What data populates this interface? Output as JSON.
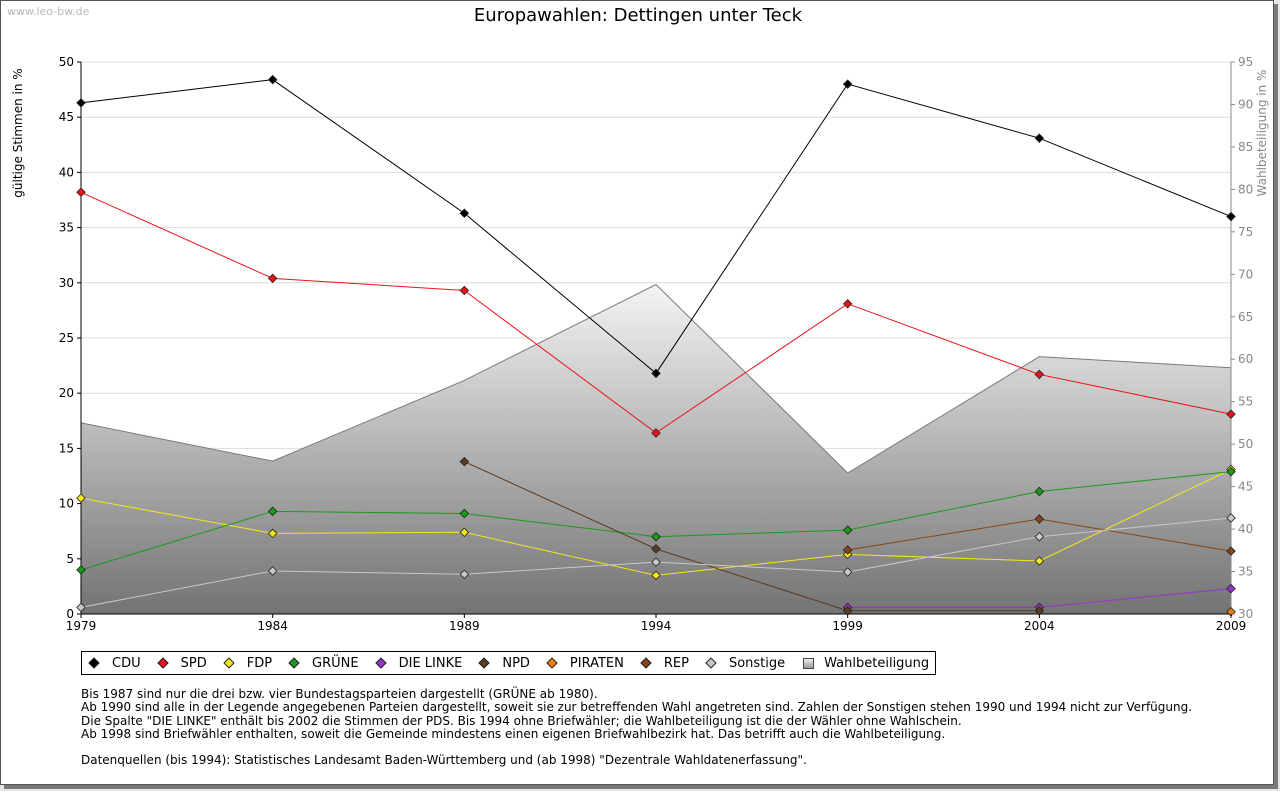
{
  "watermark": "www.leo-bw.de",
  "chart_data": {
    "type": "line",
    "title": "Europawahlen: Dettingen unter Teck",
    "ylabel": "gültige Stimmen in %",
    "ylabel_right": "Wahlbeteiligung in %",
    "categories": [
      "1979",
      "1984",
      "1989",
      "1994",
      "1999",
      "2004",
      "2009"
    ],
    "ylim": [
      0,
      50
    ],
    "yticks": [
      0,
      5,
      10,
      15,
      20,
      25,
      30,
      35,
      40,
      45,
      50
    ],
    "ylim_right": [
      30,
      95
    ],
    "yticks_right": [
      30,
      35,
      40,
      45,
      50,
      55,
      60,
      65,
      70,
      75,
      80,
      85,
      90,
      95
    ],
    "grid": true,
    "series": [
      {
        "name": "CDU",
        "color": "#000000",
        "values": [
          46.3,
          48.4,
          36.3,
          21.8,
          48.0,
          43.1,
          36.0
        ]
      },
      {
        "name": "SPD",
        "color": "#e8151b",
        "values": [
          38.2,
          30.4,
          29.3,
          16.4,
          28.1,
          21.7,
          18.1
        ]
      },
      {
        "name": "FDP",
        "color": "#f5e61e",
        "values": [
          10.5,
          7.3,
          7.4,
          3.5,
          5.4,
          4.8,
          13.1
        ]
      },
      {
        "name": "GRÜNE",
        "color": "#1a9a1a",
        "values": [
          4.0,
          9.3,
          9.1,
          7.0,
          7.6,
          11.1,
          12.9
        ]
      },
      {
        "name": "DIE LINKE",
        "color": "#9932cc",
        "values": [
          null,
          null,
          null,
          null,
          0.6,
          0.6,
          2.3
        ]
      },
      {
        "name": "NPD",
        "color": "#5c3b1e",
        "values": [
          null,
          null,
          13.8,
          5.9,
          0.3,
          0.3,
          null
        ]
      },
      {
        "name": "PIRATEN",
        "color": "#f07d0a",
        "values": [
          null,
          null,
          null,
          null,
          null,
          null,
          0.2
        ]
      },
      {
        "name": "REP",
        "color": "#8b4513",
        "values": [
          null,
          null,
          null,
          null,
          5.8,
          8.6,
          5.7
        ]
      },
      {
        "name": "Sonstige",
        "color": "#c8c8c8",
        "values": [
          0.6,
          3.9,
          3.6,
          4.7,
          3.8,
          7.0,
          8.7
        ]
      }
    ],
    "area": {
      "name": "Wahlbeteiligung",
      "axis": "right",
      "values": [
        52.5,
        48.0,
        57.5,
        68.8,
        46.6,
        60.3,
        59.0
      ]
    }
  },
  "legend": [
    {
      "label": "CDU",
      "color": "#000000"
    },
    {
      "label": "SPD",
      "color": "#e8151b"
    },
    {
      "label": "FDP",
      "color": "#f5e61e"
    },
    {
      "label": "GRÜNE",
      "color": "#1a9a1a"
    },
    {
      "label": "DIE LINKE",
      "color": "#9932cc"
    },
    {
      "label": "NPD",
      "color": "#5c3b1e"
    },
    {
      "label": "PIRATEN",
      "color": "#f07d0a"
    },
    {
      "label": "REP",
      "color": "#8b4513"
    },
    {
      "label": "Sonstige",
      "color": "#c8c8c8"
    },
    {
      "label": "Wahlbeteiligung",
      "color": "area"
    }
  ],
  "notes": [
    "Bis 1987 sind nur die drei bzw. vier Bundestagsparteien dargestellt (GRÜNE ab 1980).",
    "Ab 1990 sind alle in der Legende angegebenen Parteien dargestellt, soweit sie zur betreffenden Wahl angetreten sind. Zahlen der Sonstigen stehen 1990 und 1994 nicht zur Verfügung.",
    "Die Spalte \"DIE LINKE\" enthält bis 2002 die Stimmen der PDS. Bis 1994 ohne Briefwähler; die Wahlbeteiligung ist die der Wähler ohne Wahlschein.",
    "Ab 1998 sind Briefwähler enthalten, soweit die Gemeinde mindestens einen eigenen Briefwahlbezirk hat. Das betrifft auch die Wahlbeteiligung."
  ],
  "source": "Datenquellen (bis 1994): Statistisches Landesamt Baden-Württemberg und (ab 1998) \"Dezentrale Wahldatenerfassung\"."
}
